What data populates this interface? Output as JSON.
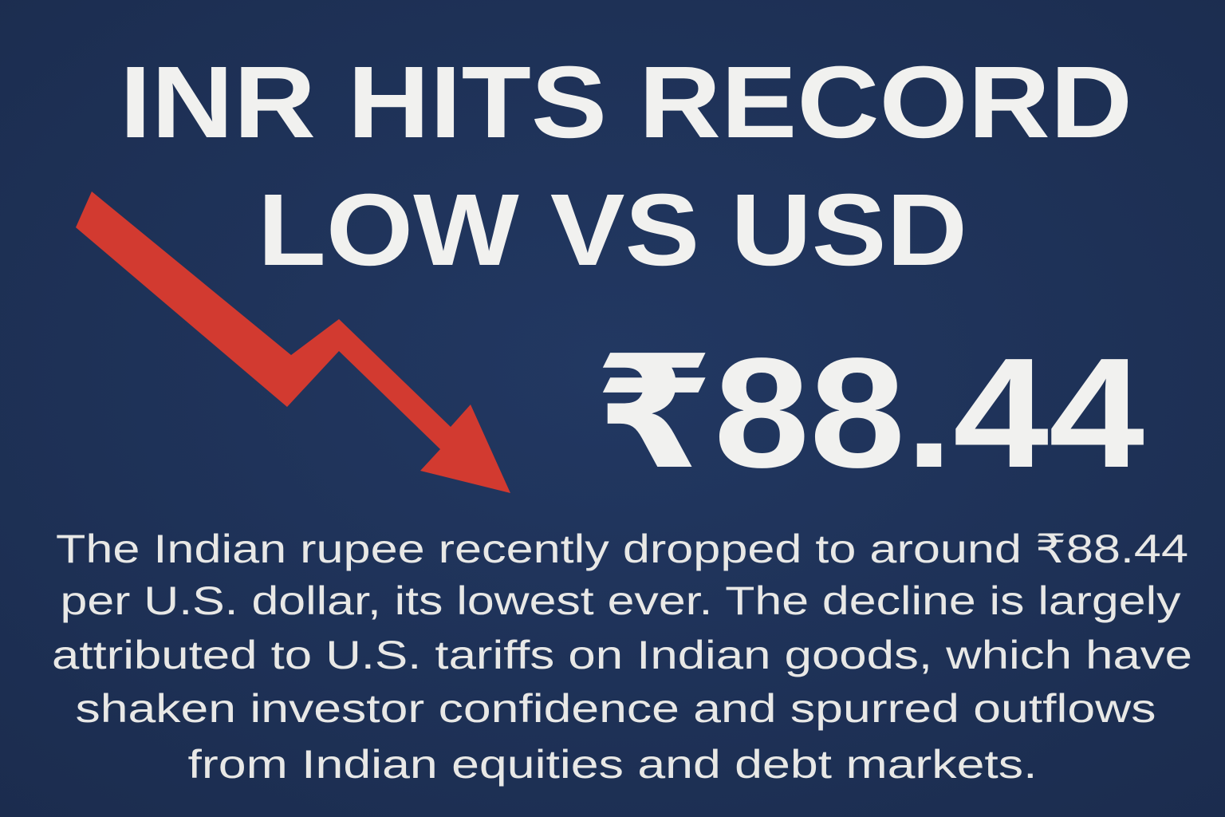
{
  "header": {
    "title_lines": [
      "INR HITS RECORD",
      "LOW VS USD"
    ]
  },
  "price": "₹88.44",
  "body": {
    "lines": [
      "The Indian rupee recently dropped to around ₹88.44",
      "per U.S. dollar, its lowest ever. The decline is largely",
      "attributed to U.S. tariffs on Indian goods, which have",
      "shaken investor confidence and spurred outflows",
      "from Indian equities and debt markets."
    ]
  }
}
